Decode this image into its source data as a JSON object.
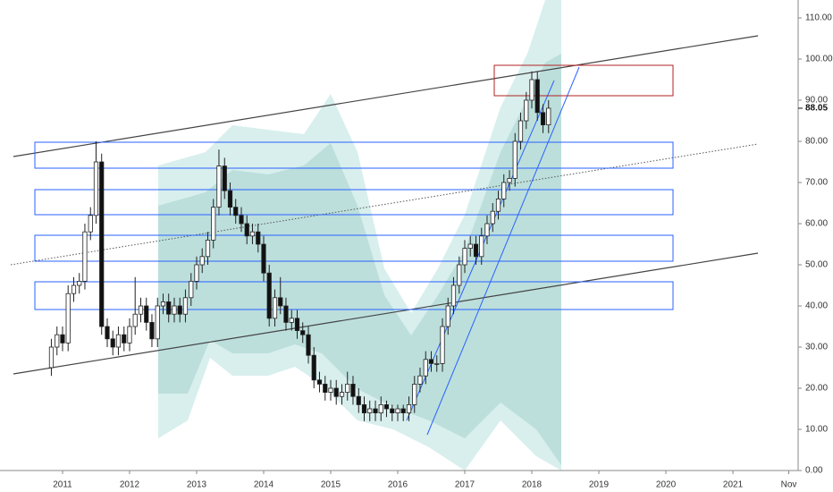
{
  "chart_data": {
    "type": "candlestick",
    "x": [
      2010.833,
      2010.917,
      2011,
      2011.083,
      2011.167,
      2011.25,
      2011.333,
      2011.417,
      2011.5,
      2011.583,
      2011.667,
      2011.75,
      2011.833,
      2011.917,
      2012,
      2012.083,
      2012.167,
      2012.25,
      2012.333,
      2012.417,
      2012.5,
      2012.583,
      2012.667,
      2012.75,
      2012.833,
      2012.917,
      2013,
      2013.083,
      2013.167,
      2013.25,
      2013.333,
      2013.417,
      2013.5,
      2013.583,
      2013.667,
      2013.75,
      2013.833,
      2013.917,
      2014,
      2014.083,
      2014.167,
      2014.25,
      2014.333,
      2014.417,
      2014.5,
      2014.583,
      2014.667,
      2014.75,
      2014.833,
      2014.917,
      2015,
      2015.083,
      2015.167,
      2015.25,
      2015.333,
      2015.417,
      2015.5,
      2015.583,
      2015.667,
      2015.75,
      2015.833,
      2015.917,
      2016,
      2016.083,
      2016.167,
      2016.25,
      2016.333,
      2016.417,
      2016.5,
      2016.583,
      2016.667,
      2016.75,
      2016.833,
      2016.917,
      2017,
      2017.083,
      2017.167,
      2017.25,
      2017.333,
      2017.417,
      2017.5,
      2017.583,
      2017.667,
      2017.75,
      2017.833,
      2017.917,
      2018,
      2018.083,
      2018.167,
      2018.25
    ],
    "open": [
      25,
      30,
      33,
      31,
      43,
      45,
      46,
      58,
      62,
      75,
      35,
      32,
      30,
      33,
      31,
      35,
      38,
      40,
      36,
      32,
      40,
      41,
      38,
      40,
      38,
      42,
      46,
      50,
      52,
      56,
      64,
      74,
      68,
      64,
      62,
      60,
      57,
      58,
      55,
      48,
      37,
      42,
      40,
      36,
      37,
      34,
      33,
      28,
      22,
      21,
      19,
      20,
      18,
      19,
      21,
      18,
      16,
      14,
      15,
      14,
      16,
      15,
      14,
      15,
      14,
      16,
      21,
      23,
      27,
      26,
      26,
      35,
      40,
      45,
      50,
      54,
      55,
      52,
      57,
      60,
      63,
      66,
      70,
      71,
      80,
      85,
      90,
      95,
      87,
      84
    ],
    "high": [
      32,
      35,
      35,
      45,
      47,
      48,
      60,
      64,
      80,
      77,
      37,
      34,
      35,
      35,
      37,
      47,
      42,
      42,
      38,
      42,
      43,
      43,
      42,
      42,
      44,
      48,
      52,
      54,
      58,
      66,
      78,
      76,
      70,
      66,
      64,
      62,
      60,
      60,
      57,
      50,
      44,
      47,
      42,
      39,
      39,
      36,
      35,
      30,
      24,
      23,
      22,
      22,
      21,
      24,
      23,
      20,
      18,
      17,
      17,
      18,
      17,
      16,
      16,
      16,
      18,
      23,
      25,
      29,
      29,
      28,
      37,
      42,
      47,
      52,
      56,
      57,
      57,
      59,
      62,
      65,
      68,
      72,
      73,
      82,
      87,
      92,
      97,
      97,
      89,
      90
    ],
    "low": [
      23,
      28,
      29,
      29,
      41,
      43,
      44,
      56,
      60,
      33,
      30,
      28,
      28,
      29,
      29,
      33,
      36,
      34,
      30,
      30,
      38,
      36,
      36,
      36,
      36,
      40,
      44,
      48,
      50,
      54,
      62,
      66,
      62,
      60,
      58,
      55,
      55,
      53,
      46,
      35,
      35,
      38,
      34,
      34,
      32,
      31,
      26,
      20,
      19,
      17,
      17,
      16,
      16,
      17,
      16,
      14,
      12,
      12,
      12,
      12,
      13,
      12,
      12,
      12,
      12,
      14,
      19,
      21,
      24,
      24,
      24,
      33,
      38,
      43,
      48,
      52,
      50,
      50,
      55,
      58,
      61,
      64,
      68,
      69,
      78,
      83,
      88,
      85,
      82,
      82
    ],
    "close": [
      30,
      33,
      31,
      43,
      45,
      46,
      58,
      62,
      75,
      35,
      32,
      30,
      33,
      31,
      35,
      38,
      40,
      36,
      32,
      40,
      41,
      38,
      40,
      38,
      42,
      46,
      50,
      52,
      56,
      64,
      74,
      68,
      64,
      62,
      60,
      57,
      58,
      55,
      48,
      37,
      42,
      40,
      36,
      37,
      34,
      33,
      28,
      22,
      21,
      19,
      20,
      18,
      19,
      21,
      18,
      16,
      14,
      15,
      14,
      16,
      15,
      14,
      15,
      14,
      16,
      21,
      23,
      27,
      26,
      26,
      35,
      40,
      45,
      50,
      54,
      55,
      52,
      57,
      60,
      63,
      66,
      70,
      71,
      80,
      85,
      90,
      95,
      87,
      84,
      88.05
    ],
    "up_color": "#ffffff",
    "down_color": "#111111",
    "outline_color": "#222222",
    "last_price": 88.05,
    "xlim": [
      2010.067,
      2021.973
    ],
    "xticks": [
      2011,
      2012,
      2013,
      2014,
      2015,
      2016,
      2017,
      2018,
      2019,
      2020,
      2021,
      {
        "value": 2021.833,
        "label": "Nov"
      }
    ],
    "ylim": [
      0,
      114.35
    ],
    "yticks": [
      {
        "value": 0,
        "label": "0.00"
      },
      {
        "value": 10,
        "label": "10.00"
      },
      {
        "value": 20,
        "label": "20.00"
      },
      {
        "value": 30,
        "label": "30.00"
      },
      {
        "value": 40,
        "label": "40.00"
      },
      {
        "value": 50,
        "label": "50.00"
      },
      {
        "value": 60,
        "label": "60.00"
      },
      {
        "value": 70,
        "label": "70.00"
      },
      {
        "value": 80,
        "label": "80.00"
      },
      {
        "value": 90,
        "label": "90.00"
      },
      {
        "value": 100,
        "label": "100.00"
      },
      {
        "value": 110,
        "label": "110.00"
      }
    ]
  }
}
